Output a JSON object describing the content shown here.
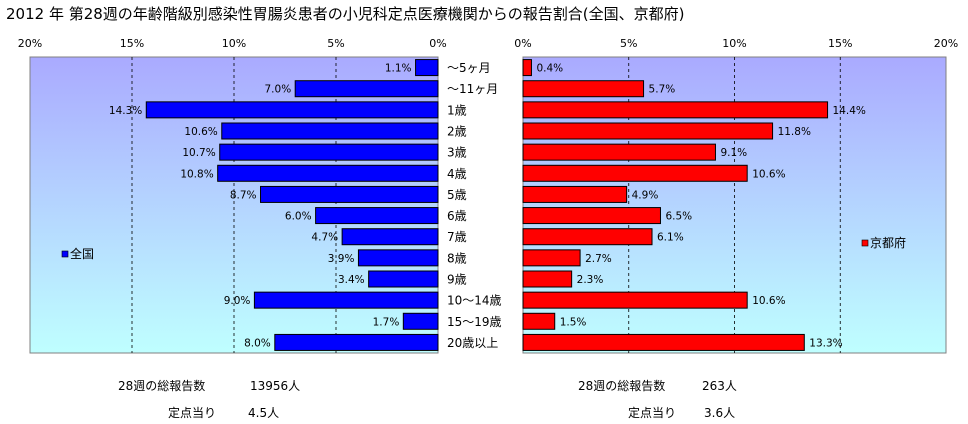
{
  "title": "2012 年 第28週の年齢階級別感染性胃腸炎患者の小児科定点医療機関からの報告割合(全国、京都府)",
  "categories": [
    "～5ヶ月",
    "～11ヶ月",
    "1歳",
    "2歳",
    "3歳",
    "4歳",
    "5歳",
    "6歳",
    "7歳",
    "8歳",
    "9歳",
    "10～14歳",
    "15～19歳",
    "20歳以上"
  ],
  "colors": {
    "national": "#0000ff",
    "kyoto": "#ff0000",
    "plot_bg_top": "#aaaaff",
    "plot_bg_bottom": "#bfffff"
  },
  "chart_data": [
    {
      "type": "bar",
      "orientation": "horizontal",
      "direction": "leftward",
      "x_ticks": [
        "20%",
        "15%",
        "10%",
        "5%",
        "0%"
      ],
      "xlim": [
        0,
        20
      ],
      "legend": "全国",
      "legend_position": "left",
      "grid": true,
      "series": [
        {
          "name": "全国",
          "values": [
            1.1,
            7.0,
            14.3,
            10.6,
            10.7,
            10.8,
            8.7,
            6.0,
            4.7,
            3.9,
            3.4,
            9.0,
            1.7,
            8.0
          ],
          "labels": [
            "1.1%",
            "7.0%",
            "14.3%",
            "10.6%",
            "10.7%",
            "10.8%",
            "8.7%",
            "6.0%",
            "4.7%",
            "3.9%",
            "3.4%",
            "9.0%",
            "1.7%",
            "8.0%"
          ]
        }
      ]
    },
    {
      "type": "bar",
      "orientation": "horizontal",
      "direction": "rightward",
      "x_ticks": [
        "0%",
        "5%",
        "10%",
        "15%",
        "20%"
      ],
      "xlim": [
        0,
        20
      ],
      "legend": "京都府",
      "legend_position": "right",
      "grid": true,
      "series": [
        {
          "name": "京都府",
          "values": [
            0.4,
            5.7,
            14.4,
            11.8,
            9.1,
            10.6,
            4.9,
            6.5,
            6.1,
            2.7,
            2.3,
            10.6,
            1.5,
            13.3
          ],
          "labels": [
            "0.4%",
            "5.7%",
            "14.4%",
            "11.8%",
            "9.1%",
            "10.6%",
            "4.9%",
            "6.5%",
            "6.1%",
            "2.7%",
            "2.3%",
            "10.6%",
            "1.5%",
            "13.3%"
          ]
        }
      ]
    }
  ],
  "footer": {
    "national_total_label": "28週の総報告数",
    "national_total_value": "13956人",
    "national_per_label": "定点当り",
    "national_per_value": "4.5人",
    "kyoto_total_label": "28週の総報告数",
    "kyoto_total_value": "263人",
    "kyoto_per_label": "定点当り",
    "kyoto_per_value": "3.6人"
  }
}
